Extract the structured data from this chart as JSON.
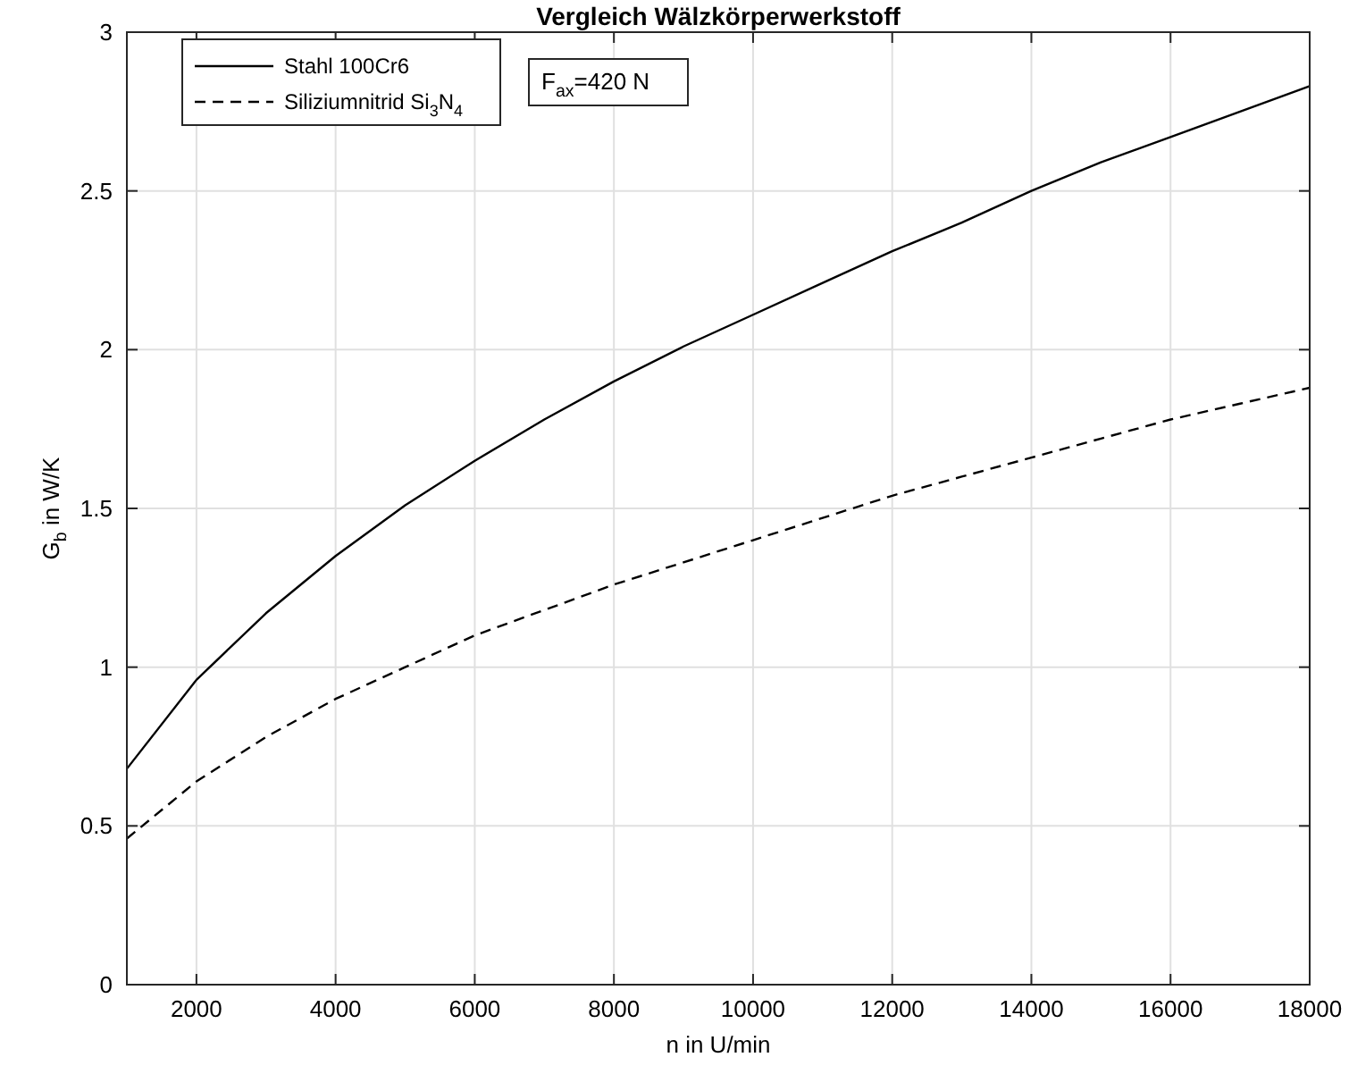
{
  "chart_data": {
    "type": "line",
    "title": "Vergleich Wälzkörperwerkstoff",
    "xlabel": "n in U/min",
    "ylabel": "G$_{b}$ in W/K",
    "x": [
      1000,
      2000,
      3000,
      4000,
      5000,
      6000,
      7000,
      8000,
      9000,
      10000,
      11000,
      12000,
      13000,
      14000,
      15000,
      16000,
      17000,
      18000
    ],
    "series": [
      {
        "name": "Stahl 100Cr6",
        "color": "#000000",
        "line_style": "solid",
        "values": [
          0.68,
          0.96,
          1.17,
          1.35,
          1.51,
          1.65,
          1.78,
          1.9,
          2.01,
          2.11,
          2.21,
          2.31,
          2.4,
          2.5,
          2.59,
          2.67,
          2.75,
          2.83
        ]
      },
      {
        "name": "Siliziumnitrid Si$_{3}$N$_{4}$",
        "color": "#000000",
        "line_style": "dashed",
        "values": [
          0.46,
          0.64,
          0.78,
          0.9,
          1.0,
          1.1,
          1.18,
          1.26,
          1.33,
          1.4,
          1.47,
          1.54,
          1.6,
          1.66,
          1.72,
          1.78,
          1.83,
          1.88
        ]
      }
    ],
    "xlim": [
      1000,
      18000
    ],
    "xticks": [
      2000,
      4000,
      6000,
      8000,
      10000,
      12000,
      14000,
      16000,
      18000
    ],
    "ylim": [
      0,
      3
    ],
    "yticks": [
      0,
      0.5,
      1,
      1.5,
      2,
      2.5,
      3
    ],
    "grid": true,
    "legend": "top left",
    "marker": "none",
    "annotations": [
      "F$_{ax}$=420 N"
    ]
  }
}
